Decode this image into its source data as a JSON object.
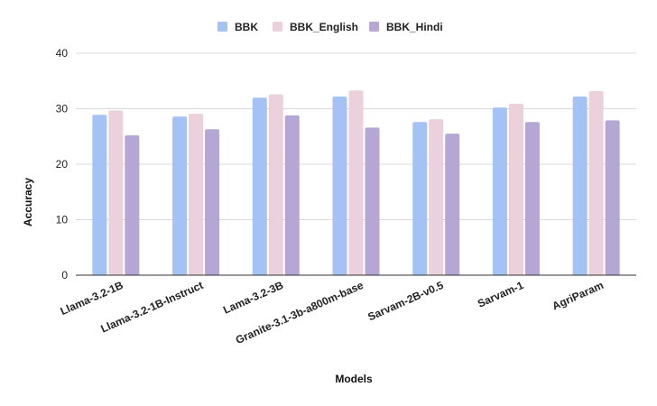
{
  "chart_data": {
    "type": "bar",
    "title": "",
    "xlabel": "Models",
    "ylabel": "Accuracy",
    "ylim": [
      0,
      40
    ],
    "yticks": [
      0,
      10,
      20,
      30,
      40
    ],
    "grid": true,
    "legend_position": "top-center",
    "categories": [
      "Llama-3.2-1B",
      "Llama-3.2-1B-Instruct",
      "Lama-3.2-3B",
      "Granite-3.1-3b-a800m-base",
      "Sarvam-2B-v0.5",
      "Sarvam-1",
      "AgriParam"
    ],
    "series": [
      {
        "name": "BBK",
        "color": "#a4c2f4",
        "values": [
          28.9,
          28.6,
          32.0,
          32.2,
          27.6,
          30.2,
          32.2
        ]
      },
      {
        "name": "BBK_English",
        "color": "#ead1dc",
        "values": [
          29.7,
          29.1,
          32.6,
          33.3,
          28.1,
          30.9,
          33.2
        ]
      },
      {
        "name": "BBK_Hindi",
        "color": "#b4a7d6",
        "values": [
          25.2,
          26.3,
          28.8,
          26.6,
          25.5,
          27.6,
          27.9
        ]
      }
    ]
  }
}
